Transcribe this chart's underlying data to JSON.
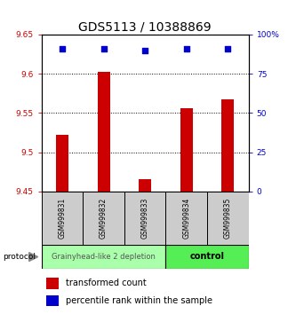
{
  "title": "GDS5113 / 10388869",
  "samples": [
    "GSM999831",
    "GSM999832",
    "GSM999833",
    "GSM999834",
    "GSM999835"
  ],
  "bar_values": [
    9.522,
    9.602,
    9.466,
    9.556,
    9.567
  ],
  "percentile_values": [
    91,
    91,
    90,
    91,
    91
  ],
  "bar_color": "#cc0000",
  "percentile_color": "#0000cc",
  "ylim_left": [
    9.45,
    9.65
  ],
  "ylim_right": [
    0,
    100
  ],
  "yticks_left": [
    9.45,
    9.5,
    9.55,
    9.6,
    9.65
  ],
  "yticks_right": [
    0,
    25,
    50,
    75,
    100
  ],
  "ytick_labels_left": [
    "9.45",
    "9.5",
    "9.55",
    "9.6",
    "9.65"
  ],
  "ytick_labels_right": [
    "0",
    "25",
    "50",
    "75",
    "100%"
  ],
  "grid_yticks": [
    9.5,
    9.55,
    9.6
  ],
  "group1_label": "Grainyhead-like 2 depletion",
  "group2_label": "control",
  "group1_color": "#aaffaa",
  "group2_color": "#55ee55",
  "sample_box_color": "#cccccc",
  "protocol_label": "protocol",
  "legend_bar_label": "transformed count",
  "legend_pct_label": "percentile rank within the sample",
  "title_fontsize": 10,
  "tick_label_fontsize": 6.5,
  "sample_fontsize": 5.5,
  "group_fontsize": 6,
  "legend_fontsize": 7,
  "bar_width": 0.3
}
